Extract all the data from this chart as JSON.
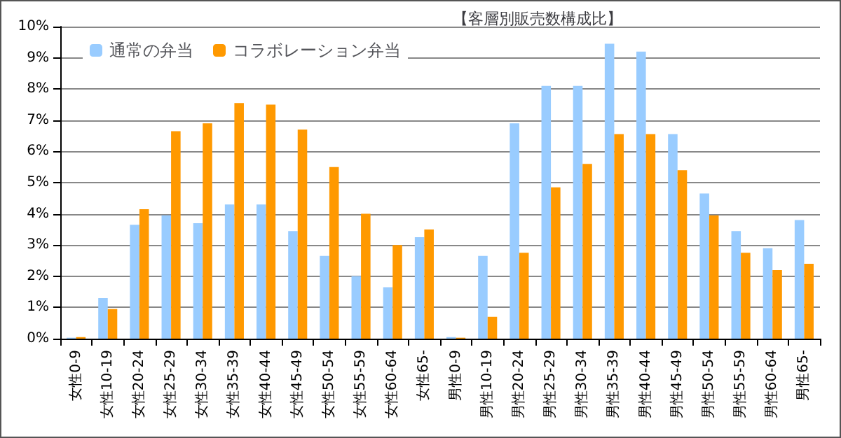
{
  "chart_data": {
    "type": "bar",
    "title": "【客層別販売数構成比】",
    "categories": [
      "女性0-9",
      "女性10-19",
      "女性20-24",
      "女性25-29",
      "女性30-34",
      "女性35-39",
      "女性40-44",
      "女性45-49",
      "女性50-54",
      "女性55-59",
      "女性60-64",
      "女性65-",
      "男性0-9",
      "男性10-19",
      "男性20-24",
      "男性25-29",
      "男性30-34",
      "男性35-39",
      "男性40-44",
      "男性45-49",
      "男性50-54",
      "男性55-59",
      "男性60-64",
      "男性65-"
    ],
    "series": [
      {
        "name": "通常の弁当",
        "color": "#99ccff",
        "values": [
          0.03,
          1.3,
          3.65,
          3.95,
          3.7,
          4.3,
          4.3,
          3.45,
          2.65,
          2.0,
          1.65,
          3.25,
          0.05,
          2.65,
          6.9,
          8.1,
          8.1,
          9.45,
          9.2,
          6.55,
          4.65,
          3.45,
          2.9,
          3.8
        ]
      },
      {
        "name": "コラボレーション弁当",
        "color": "#ff9900",
        "values": [
          0.05,
          0.95,
          4.15,
          6.65,
          6.9,
          7.55,
          7.5,
          6.7,
          5.5,
          4.0,
          3.0,
          3.5,
          0.03,
          0.7,
          2.75,
          4.85,
          5.6,
          6.55,
          6.55,
          5.4,
          3.95,
          2.75,
          2.2,
          2.4
        ]
      }
    ],
    "ylim": [
      0,
      10
    ],
    "yticks": [
      {
        "value": 0,
        "label": "0%"
      },
      {
        "value": 1,
        "label": "1%"
      },
      {
        "value": 2,
        "label": "2%"
      },
      {
        "value": 3,
        "label": "3%"
      },
      {
        "value": 4,
        "label": "4%"
      },
      {
        "value": 5,
        "label": "5%"
      },
      {
        "value": 6,
        "label": "6%"
      },
      {
        "value": 7,
        "label": "7%"
      },
      {
        "value": 8,
        "label": "8%"
      },
      {
        "value": 9,
        "label": "9%"
      },
      {
        "value": 10,
        "label": "10%"
      }
    ],
    "grid": "y",
    "legend": "top left"
  }
}
